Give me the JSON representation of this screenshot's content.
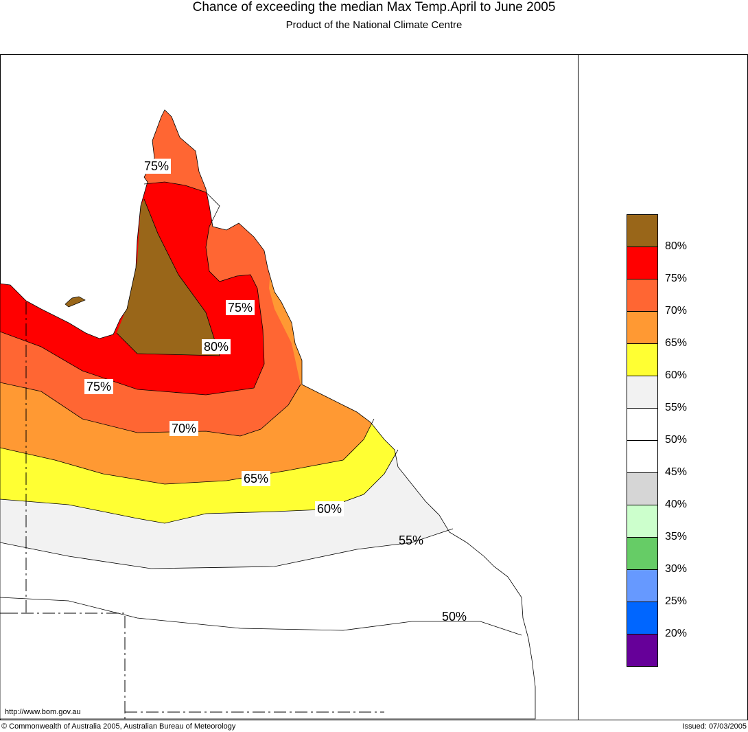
{
  "title": "Chance of exceeding the median Max Temp.April to June 2005",
  "subtitle": "Product of the National Climate Centre",
  "url": "http://www.bom.gov.au",
  "copyright": "© Commonwealth of Australia 2005, Australian Bureau of Meteorology",
  "issued": "Issued: 07/03/2005",
  "contour_labels": [
    "75%",
    "75%",
    "80%",
    "75%",
    "70%",
    "65%",
    "60%",
    "55%",
    "50%"
  ],
  "legend": {
    "colors": [
      "#996619",
      "#ff0000",
      "#ff6633",
      "#ff9933",
      "#ffff33",
      "#f2f2f2",
      "#ffffff",
      "#ffffff",
      "#d6d6d6",
      "#ccffcc",
      "#66cc66",
      "#6699ff",
      "#0066ff",
      "#660099"
    ],
    "labels": [
      "80%",
      "75%",
      "70%",
      "65%",
      "60%",
      "55%",
      "50%",
      "45%",
      "40%",
      "35%",
      "30%",
      "25%",
      "20%"
    ]
  }
}
